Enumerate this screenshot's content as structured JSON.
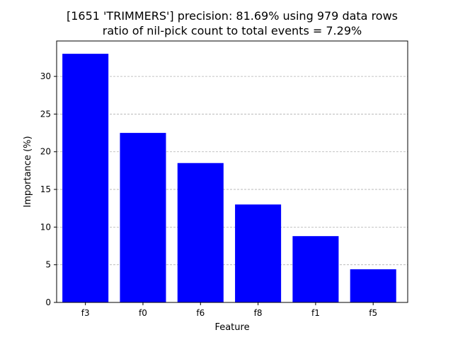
{
  "chart_data": {
    "type": "bar",
    "title": "[1651 'TRIMMERS'] precision: 81.69% using 979 data rows",
    "subtitle": "ratio of nil-pick count to total events = 7.29%",
    "xlabel": "Feature",
    "ylabel": "Importance (%)",
    "categories": [
      "f3",
      "f0",
      "f6",
      "f8",
      "f1",
      "f5"
    ],
    "values": [
      33.0,
      22.5,
      18.5,
      13.0,
      8.8,
      4.4
    ],
    "ylim": [
      0,
      34.7
    ],
    "yticks": [
      0,
      5,
      10,
      15,
      20,
      25,
      30
    ],
    "bar_color": "#0000ff",
    "grid": "y-dashed"
  }
}
